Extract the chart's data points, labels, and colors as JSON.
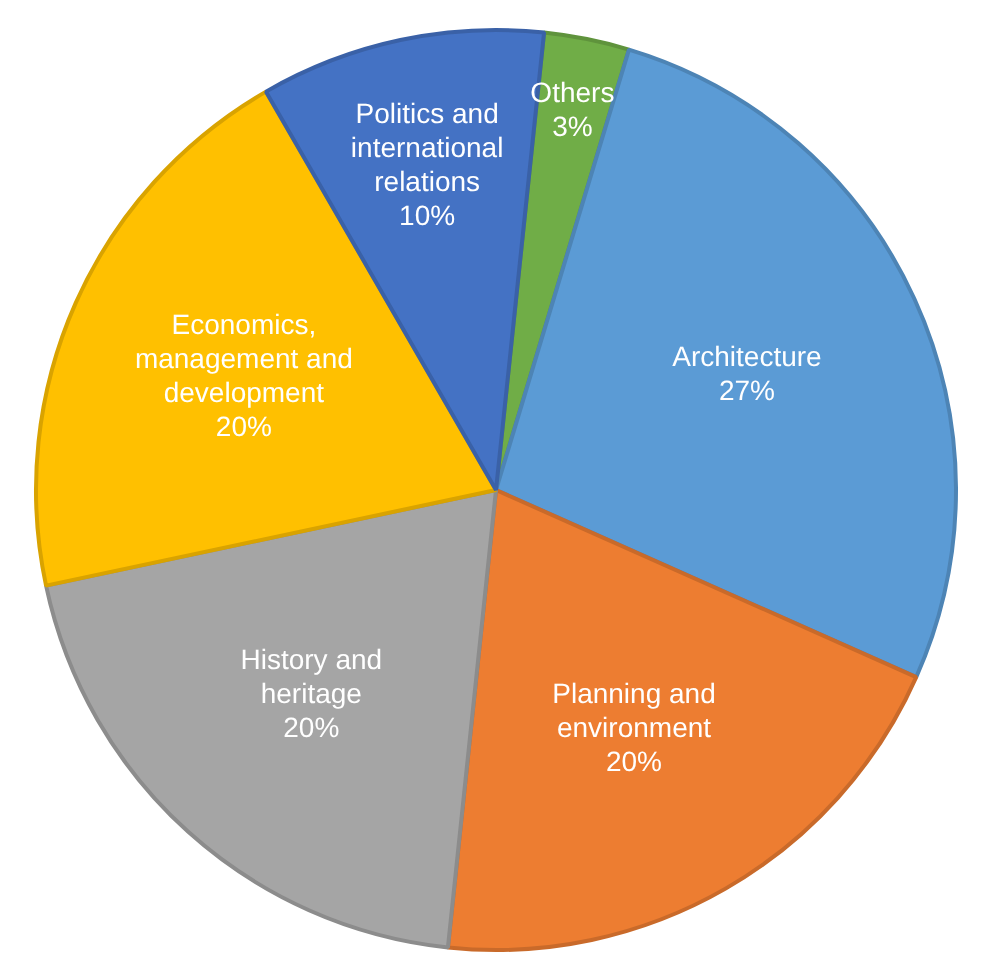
{
  "chart_data": {
    "type": "pie",
    "categories": [
      "Others",
      "Architecture",
      "Planning and environment",
      "History and heritage",
      "Economics, management and development",
      "Politics and international relations"
    ],
    "values": [
      3,
      27,
      20,
      20,
      20,
      10
    ],
    "value_labels": [
      "3%",
      "27%",
      "20%",
      "20%",
      "20%",
      "10%"
    ],
    "colors": [
      "#70ad47",
      "#5b9bd5",
      "#ed7d31",
      "#a5a5a5",
      "#ffc000",
      "#4472c4"
    ]
  }
}
